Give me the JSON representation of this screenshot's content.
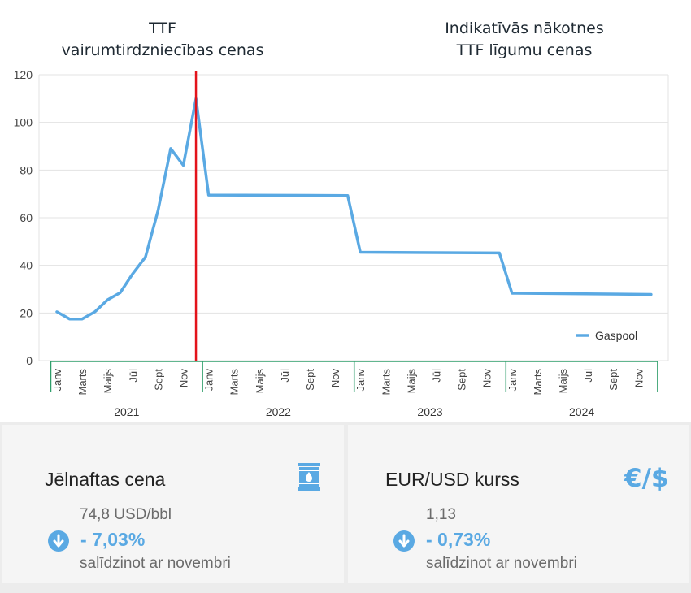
{
  "titles": {
    "left_line1": "TTF",
    "left_line2": "vairumtirdzniecības cenas",
    "right_line1": "Indikatīvās nākotnes",
    "right_line2": "TTF līgumu cenas"
  },
  "chart_data": {
    "type": "line",
    "title": "",
    "xlabel": "",
    "ylabel": "",
    "ylim": [
      0,
      120
    ],
    "yticks": [
      0,
      20,
      40,
      60,
      80,
      100,
      120
    ],
    "grid": true,
    "legend_position": "bottom-right",
    "month_labels": [
      "Janv",
      "Marts",
      "Maijs",
      "Jūl",
      "Sept",
      "Nov"
    ],
    "years": [
      "2021",
      "2022",
      "2023",
      "2024"
    ],
    "divider_after": "2021-12",
    "series": [
      {
        "name": "Gaspool",
        "color": "#5aa9e3",
        "points": [
          [
            "2021-01",
            20.5
          ],
          [
            "2021-02",
            17.5
          ],
          [
            "2021-03",
            17.5
          ],
          [
            "2021-04",
            20.5
          ],
          [
            "2021-05",
            25.5
          ],
          [
            "2021-06",
            28.5
          ],
          [
            "2021-07",
            36.5
          ],
          [
            "2021-08",
            43.5
          ],
          [
            "2021-09",
            63
          ],
          [
            "2021-10",
            89
          ],
          [
            "2021-11",
            82
          ],
          [
            "2021-12",
            110
          ],
          [
            "2022-01",
            69.5
          ],
          [
            "2022-12",
            69.3
          ],
          [
            "2023-01",
            45.5
          ],
          [
            "2023-12",
            45.2
          ],
          [
            "2024-01",
            28.3
          ],
          [
            "2024-12",
            27.8
          ]
        ]
      }
    ]
  },
  "cards": {
    "oil": {
      "title": "Jēlnaftas cena",
      "value": "74,8 USD/bbl",
      "change": "- 7,03%",
      "note": "salīdzinot ar novembri",
      "icon": "oil-barrel-icon"
    },
    "fx": {
      "title": "EUR/USD kurss",
      "value": "1,13",
      "change": "- 0,73%",
      "note": "salīdzinot ar novembri",
      "icon_text": "€/$"
    },
    "down_icon": "arrow-down-circle-icon",
    "accent": "#5aa9e3"
  }
}
